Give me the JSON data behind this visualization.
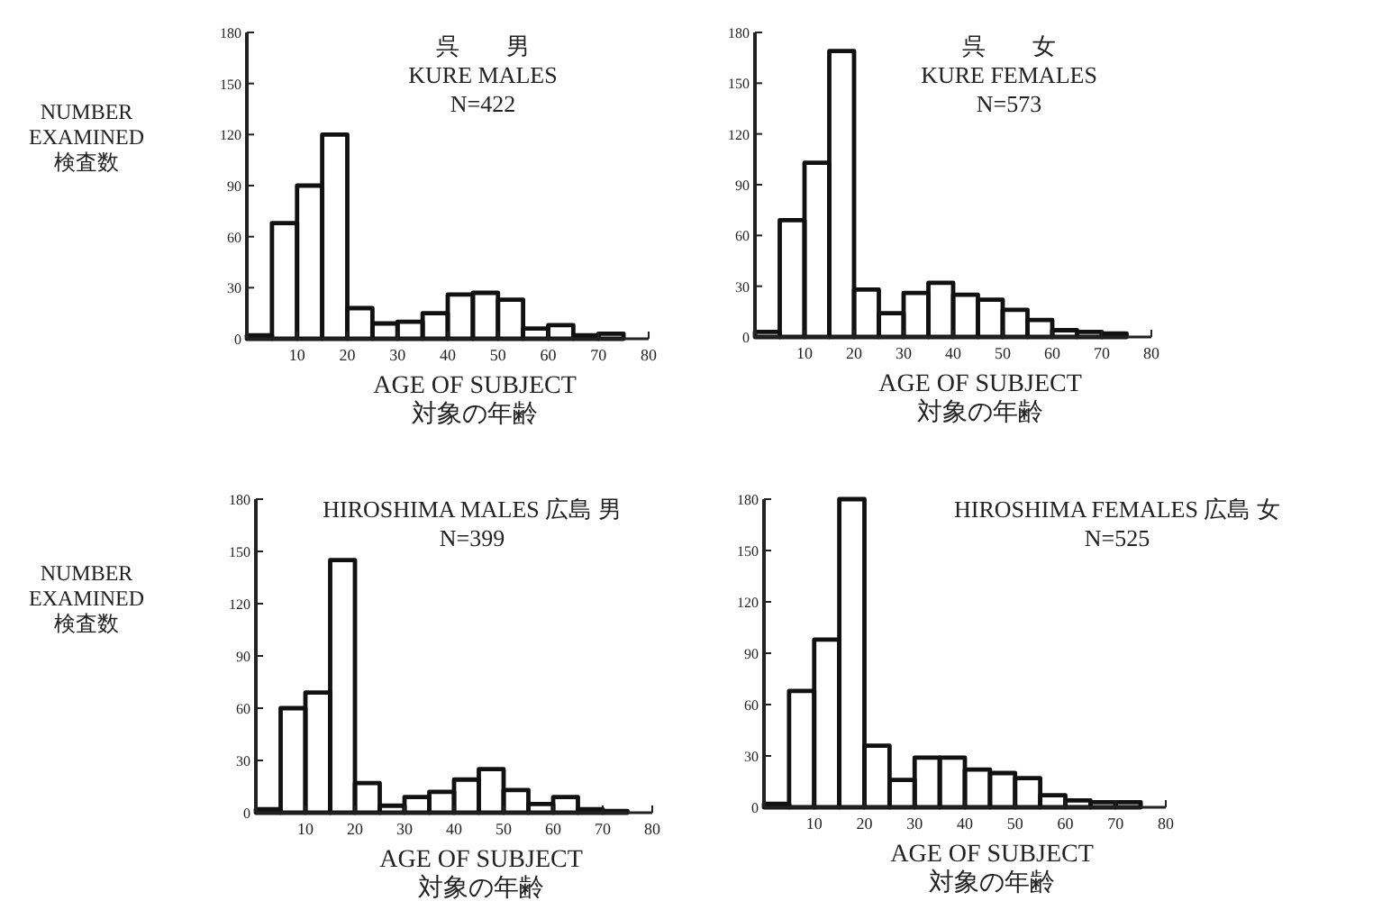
{
  "chart_data": [
    {
      "type": "histogram",
      "title": "呉　　男\nKURE MALES",
      "subtitle": "N=422",
      "xlabel": "AGE OF SUBJECT\n対象の年齢",
      "ylabel": "NUMBER\nEXAMINED\n検査数",
      "color": "#111111",
      "bins": [
        0,
        5,
        10,
        15,
        20,
        25,
        30,
        35,
        40,
        45,
        50,
        55,
        60,
        65,
        70,
        75
      ],
      "values": [
        2,
        68,
        90,
        120,
        18,
        9,
        10,
        15,
        26,
        27,
        23,
        6,
        8,
        2,
        3
      ],
      "xlim": [
        0,
        80
      ],
      "xticks": [
        10,
        20,
        30,
        40,
        50,
        60,
        70,
        80
      ],
      "ylim": [
        0,
        180
      ],
      "yticks": [
        0,
        30,
        60,
        90,
        120,
        150,
        180
      ]
    },
    {
      "type": "histogram",
      "title": "呉　　女\nKURE FEMALES",
      "subtitle": "N=573",
      "xlabel": "AGE OF SUBJECT\n対象の年齢",
      "color": "#111111",
      "bins": [
        0,
        5,
        10,
        15,
        20,
        25,
        30,
        35,
        40,
        45,
        50,
        55,
        60,
        65,
        70,
        75
      ],
      "values": [
        3,
        69,
        103,
        169,
        28,
        14,
        26,
        32,
        25,
        22,
        16,
        10,
        4,
        3,
        2
      ],
      "xlim": [
        0,
        80
      ],
      "xticks": [
        10,
        20,
        30,
        40,
        50,
        60,
        70,
        80
      ],
      "ylim": [
        0,
        180
      ],
      "yticks": [
        0,
        30,
        60,
        90,
        120,
        150,
        180
      ]
    },
    {
      "type": "histogram",
      "title": "HIROSHIMA MALES 広島 男",
      "subtitle": "N=399",
      "xlabel": "AGE OF SUBJECT\n対象の年齢",
      "ylabel": "NUMBER\nEXAMINED\n検査数",
      "color": "#111111",
      "bins": [
        0,
        5,
        10,
        15,
        20,
        25,
        30,
        35,
        40,
        45,
        50,
        55,
        60,
        65,
        70,
        75
      ],
      "values": [
        2,
        60,
        69,
        145,
        17,
        4,
        9,
        12,
        19,
        25,
        13,
        5,
        9,
        2,
        1
      ],
      "xlim": [
        0,
        80
      ],
      "xticks": [
        10,
        20,
        30,
        40,
        50,
        60,
        70,
        80
      ],
      "ylim": [
        0,
        180
      ],
      "yticks": [
        0,
        30,
        60,
        90,
        120,
        150,
        180
      ]
    },
    {
      "type": "histogram",
      "title": "HIROSHIMA FEMALES 広島 女",
      "subtitle": "N=525",
      "xlabel": "AGE OF SUBJECT\n対象の年齢",
      "color": "#111111",
      "bins": [
        0,
        5,
        10,
        15,
        20,
        25,
        30,
        35,
        40,
        45,
        50,
        55,
        60,
        65,
        70,
        75
      ],
      "values": [
        2,
        68,
        98,
        180,
        36,
        16,
        29,
        29,
        22,
        20,
        17,
        7,
        4,
        3,
        3
      ],
      "xlim": [
        0,
        80
      ],
      "xticks": [
        10,
        20,
        30,
        40,
        50,
        60,
        70,
        80
      ],
      "ylim": [
        0,
        180
      ],
      "yticks": [
        0,
        30,
        60,
        90,
        120,
        150,
        180
      ]
    }
  ]
}
